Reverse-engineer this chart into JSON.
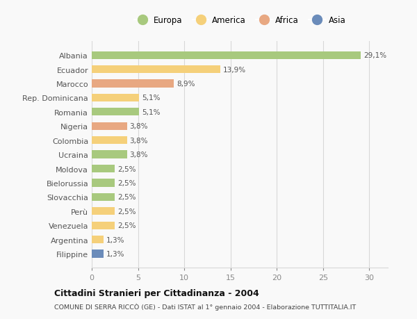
{
  "countries": [
    "Albania",
    "Ecuador",
    "Marocco",
    "Rep. Dominicana",
    "Romania",
    "Nigeria",
    "Colombia",
    "Ucraina",
    "Moldova",
    "Bielorussia",
    "Slovacchia",
    "Perù",
    "Venezuela",
    "Argentina",
    "Filippine"
  ],
  "values": [
    29.1,
    13.9,
    8.9,
    5.1,
    5.1,
    3.8,
    3.8,
    3.8,
    2.5,
    2.5,
    2.5,
    2.5,
    2.5,
    1.3,
    1.3
  ],
  "labels": [
    "29,1%",
    "13,9%",
    "8,9%",
    "5,1%",
    "5,1%",
    "3,8%",
    "3,8%",
    "3,8%",
    "2,5%",
    "2,5%",
    "2,5%",
    "2,5%",
    "2,5%",
    "1,3%",
    "1,3%"
  ],
  "continents": [
    "Europa",
    "America",
    "Africa",
    "America",
    "Europa",
    "Africa",
    "America",
    "Europa",
    "Europa",
    "Europa",
    "Europa",
    "America",
    "America",
    "America",
    "Asia"
  ],
  "colors": {
    "Europa": "#a8c97e",
    "America": "#f5d07a",
    "Africa": "#e8a882",
    "Asia": "#6b8cba"
  },
  "legend_order": [
    "Europa",
    "America",
    "Africa",
    "Asia"
  ],
  "xlim": [
    0,
    32
  ],
  "xticks": [
    0,
    5,
    10,
    15,
    20,
    25,
    30
  ],
  "title": "Cittadini Stranieri per Cittadinanza - 2004",
  "subtitle": "COMUNE DI SERRA RICCÒ (GE) - Dati ISTAT al 1° gennaio 2004 - Elaborazione TUTTITALIA.IT",
  "bg_color": "#f9f9f9",
  "grid_color": "#d8d8d8"
}
